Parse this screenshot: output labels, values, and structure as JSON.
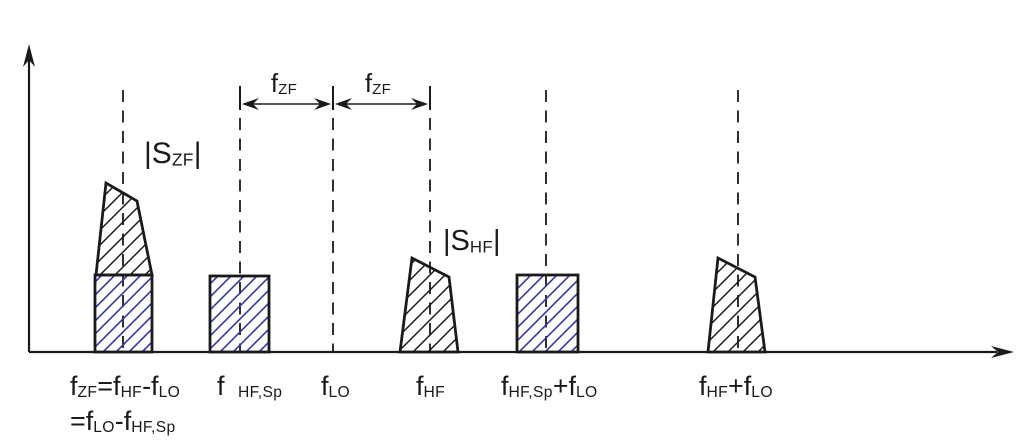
{
  "colors": {
    "background": "#ffffff",
    "line": "#1a1a1a",
    "hatch_blue": "#3434b4"
  },
  "figure": {
    "description": "Frequency spectrum diagram of heterodyne mixing: ZF (IF) spectrum, spurious and HF spectra around the LO frequency",
    "labels": {
      "s_zf": [
        {
          "t": "|S"
        },
        {
          "sub": "ZF"
        },
        {
          "t": "|"
        }
      ],
      "s_hf": [
        {
          "t": "|S"
        },
        {
          "sub": "HF"
        },
        {
          "t": "|"
        }
      ],
      "span_left": [
        {
          "t": "f"
        },
        {
          "sub": "ZF"
        }
      ],
      "span_right": [
        {
          "t": "f"
        },
        {
          "sub": "ZF"
        }
      ],
      "eq_line1": [
        {
          "t": "f"
        },
        {
          "sub": "ZF"
        },
        {
          "t": "=f"
        },
        {
          "sub": "HF"
        },
        {
          "t": "-f"
        },
        {
          "sub": "LO"
        }
      ],
      "eq_line2": [
        {
          "t": "=f"
        },
        {
          "sub": "LO"
        },
        {
          "t": "-f"
        },
        {
          "sub": "HF,Sp"
        }
      ],
      "f_hf_sp": [
        {
          "t": "f "
        },
        {
          "sub": "HF,Sp"
        }
      ],
      "f_lo": [
        {
          "t": "f"
        },
        {
          "sub": "LO"
        }
      ],
      "f_hf": [
        {
          "t": "f"
        },
        {
          "sub": "HF"
        }
      ],
      "f_hf_sp_plus_lo": [
        {
          "t": "f"
        },
        {
          "sub": "HF,Sp"
        },
        {
          "t": "+f"
        },
        {
          "sub": "LO"
        }
      ],
      "f_hf_plus_lo": [
        {
          "t": "f"
        },
        {
          "sub": "HF"
        },
        {
          "sub": ""
        },
        {
          "t": "+f"
        },
        {
          "sub": "LO"
        }
      ]
    }
  }
}
